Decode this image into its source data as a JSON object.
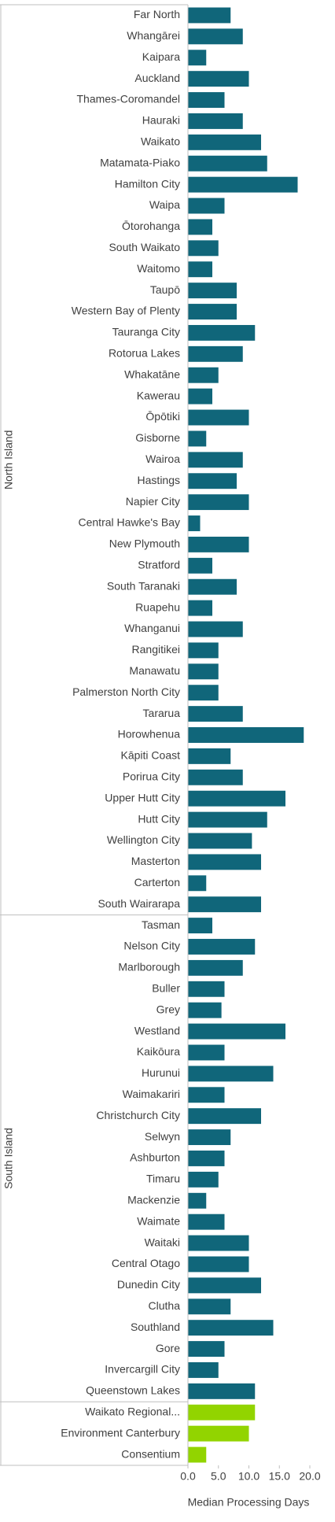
{
  "chart_data": {
    "type": "hbar",
    "x_label": "Median Processing Days",
    "xlim": [
      0,
      20
    ],
    "xticks": [
      {
        "value": 0,
        "label": "0.0"
      },
      {
        "value": 5,
        "label": "5.0"
      },
      {
        "value": 10,
        "label": "10.0"
      },
      {
        "value": 15,
        "label": "15.0"
      },
      {
        "value": 20,
        "label": "20.0"
      }
    ],
    "groups": [
      {
        "name": "North Island",
        "color": "#10667a",
        "categories": [
          "Far North",
          "Whangārei",
          "Kaipara",
          "Auckland",
          "Thames-Coromandel",
          "Hauraki",
          "Waikato",
          "Matamata-Piako",
          "Hamilton City",
          "Waipa",
          "Ōtorohanga",
          "South Waikato",
          "Waitomo",
          "Taupō",
          "Western Bay of Plenty",
          "Tauranga City",
          "Rotorua Lakes",
          "Whakatāne",
          "Kawerau",
          "Ōpōtiki",
          "Gisborne",
          "Wairoa",
          "Hastings",
          "Napier City",
          "Central Hawke's Bay",
          "New Plymouth",
          "Stratford",
          "South Taranaki",
          "Ruapehu",
          "Whanganui",
          "Rangitikei",
          "Manawatu",
          "Palmerston North City",
          "Tararua",
          "Horowhenua",
          "Kāpiti Coast",
          "Porirua City",
          "Upper Hutt City",
          "Hutt City",
          "Wellington City",
          "Masterton",
          "Carterton",
          "South Wairarapa"
        ],
        "values": [
          7,
          9,
          3,
          10,
          6,
          9,
          12,
          13,
          18,
          6,
          4,
          5,
          4,
          8,
          8,
          11,
          9,
          5,
          4,
          10,
          3,
          9,
          8,
          10,
          2,
          10,
          4,
          8,
          4,
          9,
          5,
          5,
          5,
          9,
          19,
          7,
          9,
          16,
          13,
          10.5,
          12,
          3,
          12
        ]
      },
      {
        "name": "South Island",
        "color": "#10667a",
        "categories": [
          "Tasman",
          "Nelson City",
          "Marlborough",
          "Buller",
          "Grey",
          "Westland",
          "Kaikōura",
          "Hurunui",
          "Waimakariri",
          "Christchurch City",
          "Selwyn",
          "Ashburton",
          "Timaru",
          "Mackenzie",
          "Waimate",
          "Waitaki",
          "Central Otago",
          "Dunedin City",
          "Clutha",
          "Southland",
          "Gore",
          "Invercargill City",
          "Queenstown Lakes"
        ],
        "values": [
          4,
          11,
          9,
          6,
          5.5,
          16,
          6,
          14,
          6,
          12,
          7,
          6,
          5,
          3,
          6,
          10,
          10,
          12,
          7,
          14,
          6,
          5,
          11
        ]
      },
      {
        "color": "#92d400",
        "categories": [
          "Waikato Regional...",
          "Environment Canterbury",
          "Consentium"
        ],
        "values": [
          11,
          10,
          3
        ]
      }
    ]
  }
}
